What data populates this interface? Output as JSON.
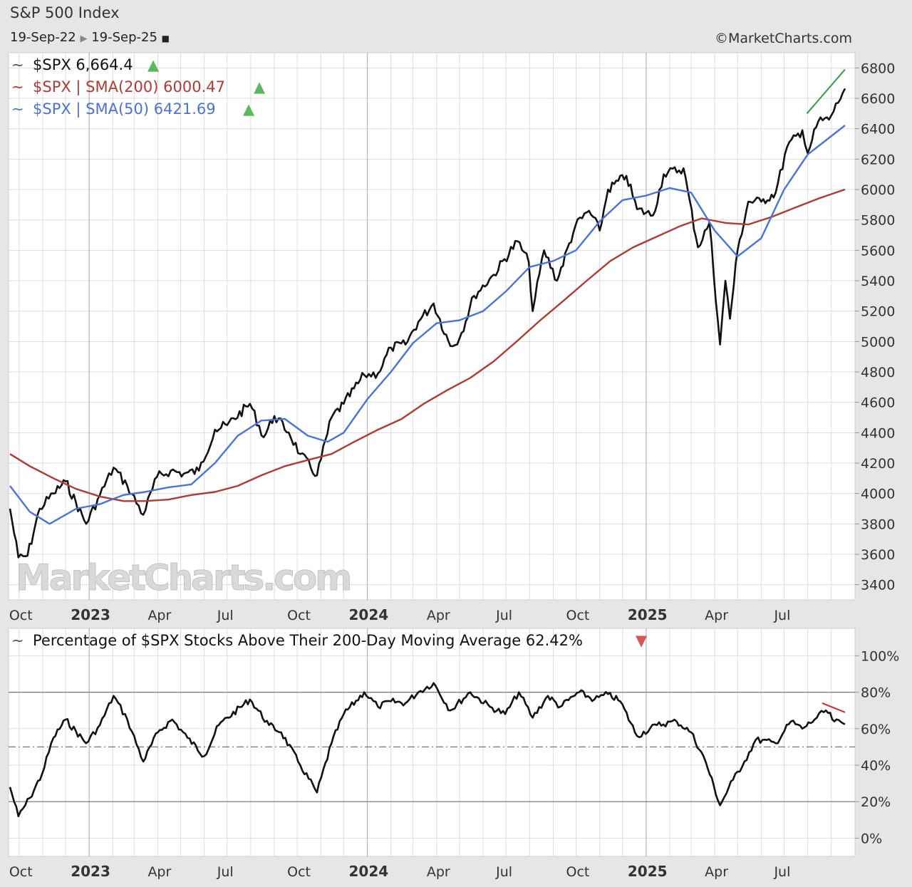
{
  "header": {
    "title": "S&P 500 Index",
    "date_from": "19-Sep-22",
    "date_to": "19-Sep-25",
    "credit": "©MarketCharts.com"
  },
  "watermark": "MarketCharts.com",
  "colors": {
    "price": "#111111",
    "sma200": "#b23a32",
    "sma50": "#4a72d8",
    "up": "#5cb85c",
    "down": "#d9534f",
    "grid": "#dddddd",
    "panel": "#ffffff"
  },
  "x_labels": [
    {
      "label": "Oct",
      "date": "2022-10-01",
      "year": false
    },
    {
      "label": "2023",
      "date": "2023-01-01",
      "year": true
    },
    {
      "label": "Apr",
      "date": "2023-04-01",
      "year": false
    },
    {
      "label": "Jul",
      "date": "2023-07-01",
      "year": false
    },
    {
      "label": "Oct",
      "date": "2023-10-01",
      "year": false
    },
    {
      "label": "2024",
      "date": "2024-01-01",
      "year": true
    },
    {
      "label": "Apr",
      "date": "2024-04-01",
      "year": false
    },
    {
      "label": "Jul",
      "date": "2024-07-01",
      "year": false
    },
    {
      "label": "Oct",
      "date": "2024-10-01",
      "year": false
    },
    {
      "label": "2025",
      "date": "2025-01-01",
      "year": true
    },
    {
      "label": "Apr",
      "date": "2025-04-01",
      "year": false
    },
    {
      "label": "Jul",
      "date": "2025-07-01",
      "year": false
    }
  ],
  "chart_data": [
    {
      "type": "line",
      "title": "S&P 500 Index",
      "x_range": [
        "2022-09-19",
        "2025-09-19"
      ],
      "ylim": [
        3300,
        6900
      ],
      "y_ticks": [
        3400,
        3600,
        3800,
        4000,
        4200,
        4400,
        4600,
        4800,
        5000,
        5200,
        5400,
        5600,
        5800,
        6000,
        6200,
        6400,
        6600,
        6800
      ],
      "grid": true,
      "legend_position": "top-left",
      "legend": [
        {
          "symbol": "$SPX",
          "label": "$SPX 6,664.4",
          "arrow": "▲"
        },
        {
          "symbol": "$SPX | SMA(200)",
          "label": "$SPX | SMA(200) 6000.47",
          "arrow": "▲"
        },
        {
          "symbol": "$SPX | SMA(50)",
          "label": "$SPX | SMA(50) 6421.69",
          "arrow": "▲"
        }
      ],
      "series": [
        {
          "name": "$SPX",
          "color": "#111111",
          "points": [
            [
              "2022-09-19",
              3900
            ],
            [
              "2022-09-30",
              3580
            ],
            [
              "2022-10-12",
              3590
            ],
            [
              "2022-10-28",
              3900
            ],
            [
              "2022-11-15",
              4000
            ],
            [
              "2022-12-01",
              4080
            ],
            [
              "2022-12-28",
              3800
            ],
            [
              "2023-01-15",
              3990
            ],
            [
              "2023-02-02",
              4170
            ],
            [
              "2023-02-20",
              4050
            ],
            [
              "2023-03-13",
              3860
            ],
            [
              "2023-03-31",
              4110
            ],
            [
              "2023-04-18",
              4150
            ],
            [
              "2023-05-05",
              4130
            ],
            [
              "2023-05-25",
              4150
            ],
            [
              "2023-06-15",
              4420
            ],
            [
              "2023-07-01",
              4450
            ],
            [
              "2023-07-31",
              4590
            ],
            [
              "2023-08-18",
              4370
            ],
            [
              "2023-09-01",
              4510
            ],
            [
              "2023-09-20",
              4400
            ],
            [
              "2023-10-05",
              4260
            ],
            [
              "2023-10-27",
              4120
            ],
            [
              "2023-11-15",
              4500
            ],
            [
              "2023-12-01",
              4590
            ],
            [
              "2023-12-28",
              4780
            ],
            [
              "2024-01-15",
              4790
            ],
            [
              "2024-02-01",
              4960
            ],
            [
              "2024-02-20",
              4980
            ],
            [
              "2024-03-08",
              5130
            ],
            [
              "2024-03-28",
              5250
            ],
            [
              "2024-04-19",
              4970
            ],
            [
              "2024-05-01",
              5020
            ],
            [
              "2024-05-20",
              5300
            ],
            [
              "2024-06-15",
              5440
            ],
            [
              "2024-07-16",
              5660
            ],
            [
              "2024-07-31",
              5520
            ],
            [
              "2024-08-05",
              5200
            ],
            [
              "2024-08-20",
              5600
            ],
            [
              "2024-09-06",
              5400
            ],
            [
              "2024-09-30",
              5760
            ],
            [
              "2024-10-18",
              5860
            ],
            [
              "2024-11-01",
              5730
            ],
            [
              "2024-11-12",
              6000
            ],
            [
              "2024-12-06",
              6090
            ],
            [
              "2024-12-20",
              5870
            ],
            [
              "2025-01-10",
              5830
            ],
            [
              "2025-01-24",
              6100
            ],
            [
              "2025-02-19",
              6140
            ],
            [
              "2025-03-10",
              5620
            ],
            [
              "2025-03-25",
              5780
            ],
            [
              "2025-04-08",
              4980
            ],
            [
              "2025-04-15",
              5400
            ],
            [
              "2025-04-21",
              5150
            ],
            [
              "2025-05-01",
              5600
            ],
            [
              "2025-05-15",
              5920
            ],
            [
              "2025-06-01",
              5920
            ],
            [
              "2025-06-20",
              5980
            ],
            [
              "2025-07-05",
              6280
            ],
            [
              "2025-07-25",
              6390
            ],
            [
              "2025-08-01",
              6240
            ],
            [
              "2025-08-15",
              6450
            ],
            [
              "2025-08-29",
              6460
            ],
            [
              "2025-09-19",
              6664.4
            ]
          ]
        },
        {
          "name": "$SPX | SMA(200)",
          "color": "#b23a32",
          "points": [
            [
              "2022-09-19",
              4260
            ],
            [
              "2022-10-15",
              4180
            ],
            [
              "2022-11-15",
              4100
            ],
            [
              "2022-12-15",
              4030
            ],
            [
              "2023-01-15",
              3980
            ],
            [
              "2023-02-15",
              3950
            ],
            [
              "2023-03-15",
              3950
            ],
            [
              "2023-04-15",
              3960
            ],
            [
              "2023-05-15",
              3990
            ],
            [
              "2023-06-15",
              4010
            ],
            [
              "2023-07-15",
              4050
            ],
            [
              "2023-08-15",
              4120
            ],
            [
              "2023-09-15",
              4180
            ],
            [
              "2023-10-15",
              4220
            ],
            [
              "2023-11-15",
              4260
            ],
            [
              "2023-12-15",
              4340
            ],
            [
              "2024-01-15",
              4420
            ],
            [
              "2024-02-15",
              4490
            ],
            [
              "2024-03-15",
              4590
            ],
            [
              "2024-04-15",
              4680
            ],
            [
              "2024-05-15",
              4760
            ],
            [
              "2024-06-15",
              4870
            ],
            [
              "2024-07-15",
              5000
            ],
            [
              "2024-08-15",
              5140
            ],
            [
              "2024-09-15",
              5270
            ],
            [
              "2024-10-15",
              5400
            ],
            [
              "2024-11-15",
              5530
            ],
            [
              "2024-12-15",
              5620
            ],
            [
              "2025-01-15",
              5690
            ],
            [
              "2025-02-15",
              5760
            ],
            [
              "2025-03-15",
              5810
            ],
            [
              "2025-04-15",
              5780
            ],
            [
              "2025-05-15",
              5770
            ],
            [
              "2025-06-15",
              5820
            ],
            [
              "2025-07-15",
              5880
            ],
            [
              "2025-08-15",
              5940
            ],
            [
              "2025-09-19",
              6000.47
            ]
          ]
        },
        {
          "name": "$SPX | SMA(50)",
          "color": "#4a72d8",
          "points": [
            [
              "2022-09-19",
              4050
            ],
            [
              "2022-10-15",
              3880
            ],
            [
              "2022-11-10",
              3800
            ],
            [
              "2022-12-15",
              3900
            ],
            [
              "2023-01-15",
              3930
            ],
            [
              "2023-02-15",
              3990
            ],
            [
              "2023-03-15",
              4010
            ],
            [
              "2023-04-15",
              4040
            ],
            [
              "2023-05-15",
              4060
            ],
            [
              "2023-06-15",
              4200
            ],
            [
              "2023-07-15",
              4380
            ],
            [
              "2023-08-15",
              4480
            ],
            [
              "2023-09-15",
              4490
            ],
            [
              "2023-10-15",
              4380
            ],
            [
              "2023-11-10",
              4340
            ],
            [
              "2023-12-01",
              4400
            ],
            [
              "2024-01-01",
              4620
            ],
            [
              "2024-02-01",
              4800
            ],
            [
              "2024-03-01",
              4990
            ],
            [
              "2024-04-01",
              5120
            ],
            [
              "2024-05-01",
              5140
            ],
            [
              "2024-06-01",
              5200
            ],
            [
              "2024-07-01",
              5330
            ],
            [
              "2024-08-01",
              5490
            ],
            [
              "2024-09-01",
              5530
            ],
            [
              "2024-10-01",
              5600
            ],
            [
              "2024-11-01",
              5790
            ],
            [
              "2024-12-01",
              5930
            ],
            [
              "2025-01-01",
              5960
            ],
            [
              "2025-02-01",
              6010
            ],
            [
              "2025-03-01",
              5980
            ],
            [
              "2025-04-01",
              5730
            ],
            [
              "2025-05-01",
              5560
            ],
            [
              "2025-06-01",
              5680
            ],
            [
              "2025-07-01",
              6000
            ],
            [
              "2025-08-01",
              6230
            ],
            [
              "2025-09-19",
              6421.69
            ]
          ]
        }
      ],
      "trendline": {
        "color": "#2f9e44",
        "points": [
          [
            "2025-07-31",
            6500
          ],
          [
            "2025-09-19",
            6790
          ]
        ]
      }
    },
    {
      "type": "line",
      "title": "Percentage of $SPX Stocks Above Their 200-Day Moving Average 62.42%",
      "legend": [
        {
          "label": "Percentage of $SPX Stocks Above Their 200-Day Moving Average 62.42%",
          "arrow": "▼"
        }
      ],
      "x_range": [
        "2022-09-19",
        "2025-09-19"
      ],
      "ylim": [
        -10,
        115
      ],
      "y_ticks": [
        0,
        20,
        40,
        60,
        80,
        100
      ],
      "y_tick_labels": [
        "0%",
        "20%",
        "40%",
        "60%",
        "80%",
        "100%"
      ],
      "reference_lines": [
        {
          "value": 80,
          "style": "solid"
        },
        {
          "value": 50,
          "style": "dash-dot"
        },
        {
          "value": 20,
          "style": "solid"
        }
      ],
      "series": [
        {
          "name": "% above 200-DMA",
          "color": "#111111",
          "points": [
            [
              "2022-09-19",
              28
            ],
            [
              "2022-09-30",
              12
            ],
            [
              "2022-10-15",
              22
            ],
            [
              "2022-10-31",
              35
            ],
            [
              "2022-11-15",
              55
            ],
            [
              "2022-12-01",
              65
            ],
            [
              "2022-12-28",
              52
            ],
            [
              "2023-01-15",
              62
            ],
            [
              "2023-02-02",
              78
            ],
            [
              "2023-02-20",
              65
            ],
            [
              "2023-03-13",
              42
            ],
            [
              "2023-04-01",
              58
            ],
            [
              "2023-04-20",
              65
            ],
            [
              "2023-05-10",
              55
            ],
            [
              "2023-06-01",
              45
            ],
            [
              "2023-06-20",
              62
            ],
            [
              "2023-07-31",
              76
            ],
            [
              "2023-08-25",
              62
            ],
            [
              "2023-09-10",
              58
            ],
            [
              "2023-10-05",
              40
            ],
            [
              "2023-10-27",
              25
            ],
            [
              "2023-11-15",
              52
            ],
            [
              "2023-12-01",
              68
            ],
            [
              "2023-12-28",
              80
            ],
            [
              "2024-01-15",
              72
            ],
            [
              "2024-02-01",
              75
            ],
            [
              "2024-02-20",
              74
            ],
            [
              "2024-03-08",
              80
            ],
            [
              "2024-03-28",
              85
            ],
            [
              "2024-04-19",
              70
            ],
            [
              "2024-05-15",
              80
            ],
            [
              "2024-06-10",
              72
            ],
            [
              "2024-06-30",
              68
            ],
            [
              "2024-07-18",
              80
            ],
            [
              "2024-08-05",
              66
            ],
            [
              "2024-08-25",
              78
            ],
            [
              "2024-09-10",
              72
            ],
            [
              "2024-10-05",
              80
            ],
            [
              "2024-10-25",
              76
            ],
            [
              "2024-11-12",
              79
            ],
            [
              "2024-11-28",
              75
            ],
            [
              "2024-12-20",
              56
            ],
            [
              "2025-01-15",
              62
            ],
            [
              "2025-02-10",
              64
            ],
            [
              "2025-03-01",
              58
            ],
            [
              "2025-03-20",
              42
            ],
            [
              "2025-04-08",
              18
            ],
            [
              "2025-04-25",
              32
            ],
            [
              "2025-05-10",
              42
            ],
            [
              "2025-05-25",
              54
            ],
            [
              "2025-06-20",
              52
            ],
            [
              "2025-07-10",
              64
            ],
            [
              "2025-07-25",
              60
            ],
            [
              "2025-08-10",
              65
            ],
            [
              "2025-08-25",
              70
            ],
            [
              "2025-09-05",
              64
            ],
            [
              "2025-09-19",
              62.42
            ]
          ]
        }
      ],
      "trendline": {
        "color": "#d62828",
        "points": [
          [
            "2025-08-20",
            74
          ],
          [
            "2025-09-19",
            69
          ]
        ]
      }
    }
  ]
}
